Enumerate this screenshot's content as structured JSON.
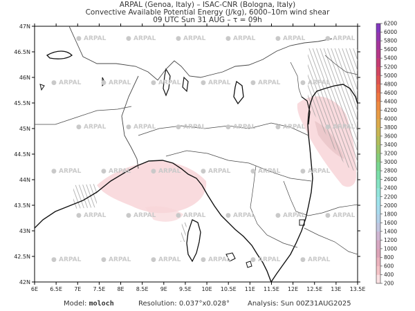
{
  "header": {
    "line1": "ARPAL (Genoa, Italy)  –  ISAC-CNR (Bologna, Italy)",
    "line2": "Convective Available Potential Energy (J/kg), 6000–10m wind shear",
    "line3": "09 UTC Sun 31 AUG  –  τ = 09h"
  },
  "map": {
    "lat_labels": [
      "47N",
      "46.5N",
      "46N",
      "45.5N",
      "45N",
      "44.5N",
      "44N",
      "43.5N",
      "43N",
      "42.5N",
      "42N"
    ],
    "lon_labels": [
      "6E",
      "6.5E",
      "7E",
      "7.5E",
      "8E",
      "8.5E",
      "9E",
      "9.5E",
      "10E",
      "10.5E",
      "11E",
      "11.5E",
      "12E",
      "12.5E",
      "13E",
      "13.5E"
    ],
    "lat_range": [
      42,
      47
    ],
    "lon_range": [
      6,
      13.5
    ],
    "watermark": "ARPAL",
    "colors": {
      "coast": "#111111",
      "border": "#444444",
      "cape_low": "#f8d5d8",
      "shear": "#9a9a9a"
    }
  },
  "colorbar": {
    "levels": [
      "200",
      "400",
      "600",
      "800",
      "1000",
      "1200",
      "1400",
      "1600",
      "1800",
      "2000",
      "2200",
      "2400",
      "2600",
      "2800",
      "3000",
      "3200",
      "3400",
      "3600",
      "3800",
      "4000",
      "4200",
      "4400",
      "4600",
      "4800",
      "5000",
      "5200",
      "5400",
      "5600",
      "5800",
      "6000",
      "6200"
    ],
    "colors": [
      "#fbe1e3",
      "#f5c3c7",
      "#ecb3bd",
      "#dda4b8",
      "#d7a8c2",
      "#cfb6d2",
      "#c2c6e0",
      "#b4d2ea",
      "#a9dcef",
      "#9ee4ec",
      "#93e6dc",
      "#86e4c4",
      "#7bdfaa",
      "#79d791",
      "#86cd7a",
      "#9cc468",
      "#b3bd5b",
      "#c9b653",
      "#dcab4c",
      "#e89c46",
      "#ef8b42",
      "#ef7741",
      "#e86446",
      "#de5352",
      "#d24661",
      "#c53c73",
      "#b53788",
      "#a4359c",
      "#9336ae",
      "#8238be"
    ]
  },
  "footer": {
    "model_label": "Model:",
    "model_value": "moloch",
    "resolution_label": "Resolution:",
    "resolution_value": "0.037°x0.028°",
    "analysis_label": "Analysis:",
    "analysis_value": "Sun 00Z31AUG2025"
  }
}
